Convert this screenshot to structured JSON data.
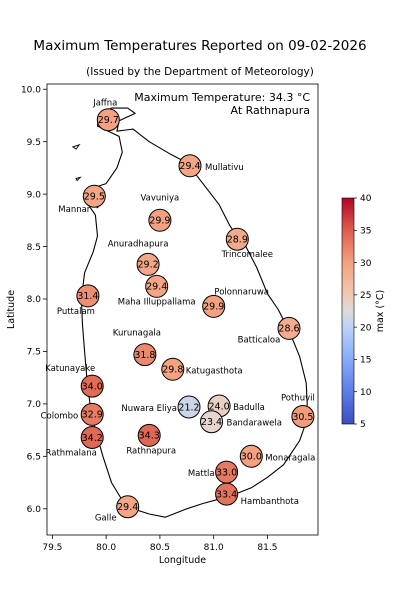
{
  "title": "Maximum Temperatures Reported on 09-02-2026",
  "subtitle": "(Issued by the Department of Meteorology)",
  "annotation": {
    "line1": "Maximum Temperature: 34.3 °C",
    "line2": "At Rathnapura"
  },
  "xlabel": "Longitude",
  "ylabel": "Latitude",
  "colorbar": {
    "label": "max (°C)",
    "colormap": "coolwarm",
    "ticks": [
      "5",
      "10",
      "15",
      "20",
      "25",
      "30",
      "35",
      "40"
    ]
  },
  "chart_data": {
    "type": "scatter",
    "xlim": [
      79.45,
      81.97
    ],
    "ylim": [
      5.75,
      10.05
    ],
    "clim": [
      5,
      40
    ],
    "xticks": [
      "79.5",
      "80.0",
      "80.5",
      "81.0",
      "81.5"
    ],
    "yticks": [
      "6.0",
      "6.5",
      "7.0",
      "7.5",
      "8.0",
      "8.5",
      "9.0",
      "9.5",
      "10.0"
    ],
    "grid": false,
    "stations": [
      {
        "name": "Jaffna",
        "lon": 80.02,
        "lat": 9.71,
        "value": 29.7
      },
      {
        "name": "Mullativu",
        "lon": 80.78,
        "lat": 9.27,
        "value": 29.4
      },
      {
        "name": "Mannar",
        "lon": 79.89,
        "lat": 8.98,
        "value": 29.5
      },
      {
        "name": "Vavuniya",
        "lon": 80.5,
        "lat": 8.75,
        "value": 29.9
      },
      {
        "name": "Trincomalee",
        "lon": 81.22,
        "lat": 8.57,
        "value": 28.9
      },
      {
        "name": "Anuradhapura",
        "lon": 80.39,
        "lat": 8.33,
        "value": 29.2
      },
      {
        "name": "Maha Illuppallama",
        "lon": 80.47,
        "lat": 8.12,
        "value": 29.4
      },
      {
        "name": "Puttalam",
        "lon": 79.83,
        "lat": 8.03,
        "value": 31.4
      },
      {
        "name": "Polonnaruwa",
        "lon": 81.0,
        "lat": 7.93,
        "value": 29.9
      },
      {
        "name": "Batticaloa",
        "lon": 81.7,
        "lat": 7.72,
        "value": 28.6
      },
      {
        "name": "Kurunagala",
        "lon": 80.36,
        "lat": 7.47,
        "value": 31.8
      },
      {
        "name": "Katugasthota",
        "lon": 80.62,
        "lat": 7.33,
        "value": 29.8
      },
      {
        "name": "Katunayake",
        "lon": 79.87,
        "lat": 7.17,
        "value": 34.0
      },
      {
        "name": "Nuwara Eliya",
        "lon": 80.77,
        "lat": 6.97,
        "value": 21.2
      },
      {
        "name": "Badulla",
        "lon": 81.05,
        "lat": 6.98,
        "value": 24.0
      },
      {
        "name": "Pothuvil",
        "lon": 81.83,
        "lat": 6.88,
        "value": 30.5
      },
      {
        "name": "Colombo",
        "lon": 79.87,
        "lat": 6.9,
        "value": 32.9
      },
      {
        "name": "Bandarawela",
        "lon": 80.98,
        "lat": 6.83,
        "value": 23.4
      },
      {
        "name": "Rathnapura",
        "lon": 80.4,
        "lat": 6.7,
        "value": 34.3
      },
      {
        "name": "Rathmalana",
        "lon": 79.87,
        "lat": 6.68,
        "value": 34.2
      },
      {
        "name": "Monaragala",
        "lon": 81.35,
        "lat": 6.5,
        "value": 30.0
      },
      {
        "name": "Mattla",
        "lon": 81.12,
        "lat": 6.35,
        "value": 33.0
      },
      {
        "name": "Hambanthota",
        "lon": 81.12,
        "lat": 6.14,
        "value": 33.4
      },
      {
        "name": "Galle",
        "lon": 80.2,
        "lat": 6.02,
        "value": 29.4
      }
    ],
    "coastline": [
      [
        80.05,
        9.82
      ],
      [
        80.2,
        9.82
      ],
      [
        80.27,
        9.77
      ],
      [
        80.12,
        9.7
      ],
      [
        80.1,
        9.6
      ],
      [
        80.25,
        9.62
      ],
      [
        80.4,
        9.5
      ],
      [
        80.6,
        9.38
      ],
      [
        80.75,
        9.3
      ],
      [
        80.9,
        9.1
      ],
      [
        81.05,
        8.9
      ],
      [
        81.15,
        8.7
      ],
      [
        81.25,
        8.55
      ],
      [
        81.3,
        8.5
      ],
      [
        81.4,
        8.3
      ],
      [
        81.5,
        8.05
      ],
      [
        81.6,
        7.9
      ],
      [
        81.7,
        7.7
      ],
      [
        81.8,
        7.45
      ],
      [
        81.86,
        7.2
      ],
      [
        81.87,
        7.0
      ],
      [
        81.85,
        6.8
      ],
      [
        81.8,
        6.65
      ],
      [
        81.65,
        6.42
      ],
      [
        81.5,
        6.3
      ],
      [
        81.35,
        6.2
      ],
      [
        81.15,
        6.12
      ],
      [
        80.9,
        6.05
      ],
      [
        80.75,
        6.0
      ],
      [
        80.55,
        5.92
      ],
      [
        80.4,
        5.95
      ],
      [
        80.25,
        6.0
      ],
      [
        80.15,
        6.08
      ],
      [
        80.05,
        6.25
      ],
      [
        79.97,
        6.5
      ],
      [
        79.9,
        6.75
      ],
      [
        79.85,
        7.0
      ],
      [
        79.82,
        7.25
      ],
      [
        79.8,
        7.5
      ],
      [
        79.78,
        7.75
      ],
      [
        79.77,
        8.0
      ],
      [
        79.8,
        8.25
      ],
      [
        79.88,
        8.45
      ],
      [
        79.92,
        8.6
      ],
      [
        79.9,
        8.8
      ],
      [
        79.8,
        8.95
      ],
      [
        79.85,
        9.05
      ],
      [
        80.0,
        9.1
      ],
      [
        80.1,
        9.25
      ],
      [
        80.15,
        9.4
      ],
      [
        80.12,
        9.55
      ],
      [
        80.02,
        9.6
      ],
      [
        79.92,
        9.65
      ],
      [
        79.93,
        9.75
      ],
      [
        80.05,
        9.82
      ]
    ],
    "islands": [
      [
        [
          79.69,
          9.45
        ],
        [
          79.75,
          9.47
        ],
        [
          79.72,
          9.43
        ],
        [
          79.69,
          9.45
        ]
      ],
      [
        [
          79.72,
          9.15
        ],
        [
          79.76,
          9.16
        ],
        [
          79.73,
          9.13
        ],
        [
          79.72,
          9.15
        ]
      ],
      [
        [
          79.88,
          8.9
        ],
        [
          79.95,
          8.92
        ],
        [
          79.92,
          8.87
        ],
        [
          79.88,
          8.9
        ]
      ]
    ]
  }
}
